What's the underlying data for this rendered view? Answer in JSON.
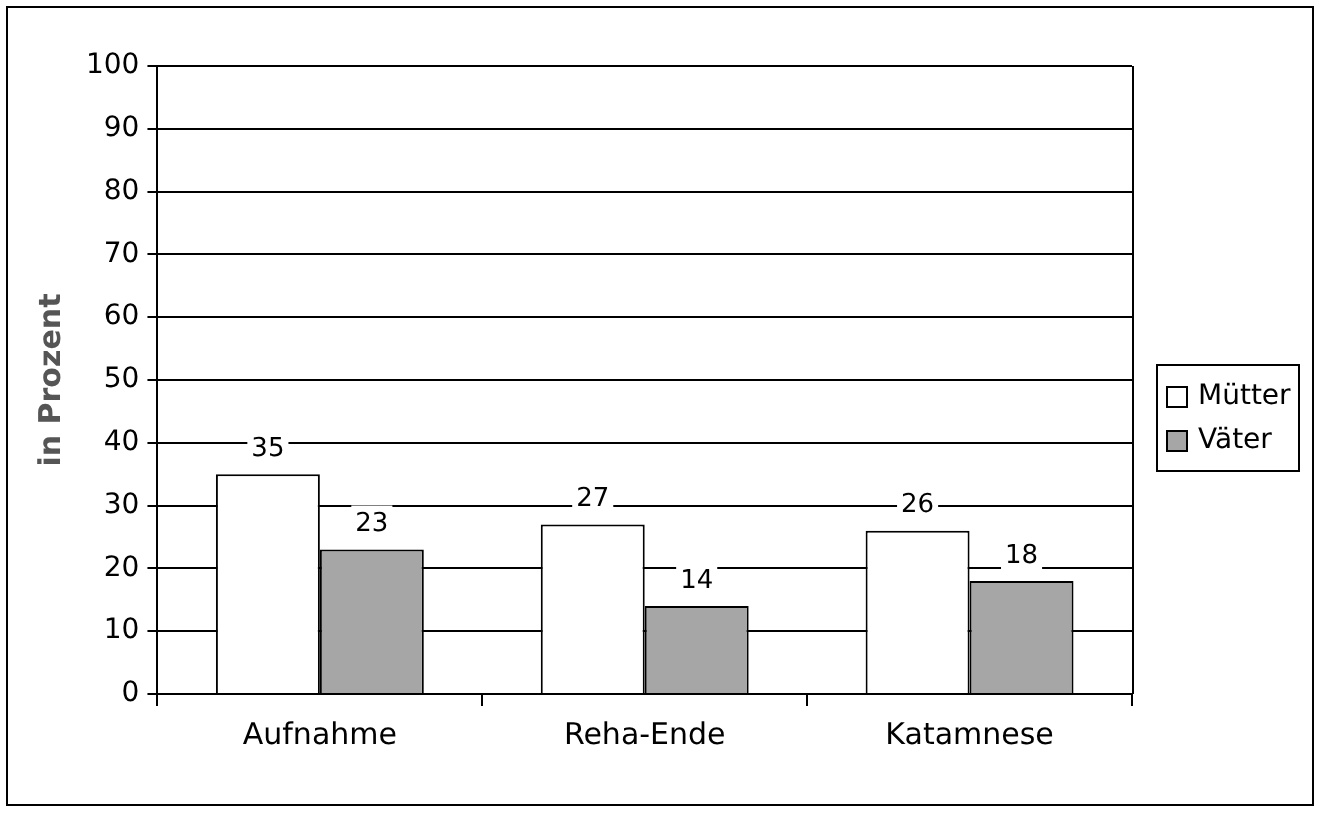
{
  "chart_data": {
    "type": "bar",
    "ylabel": "in Prozent",
    "categories": [
      "Aufnahme",
      "Reha-Ende",
      "Katamnese"
    ],
    "series": [
      {
        "name": "Mütter",
        "color": "#ffffff",
        "values": [
          35,
          27,
          26
        ]
      },
      {
        "name": "Väter",
        "color": "#a6a6a6",
        "values": [
          23,
          14,
          18
        ]
      }
    ],
    "ylim": [
      0,
      100
    ],
    "yticks": [
      0,
      10,
      20,
      30,
      40,
      50,
      60,
      70,
      80,
      90,
      100
    ],
    "grid": "y",
    "legend": "right",
    "data_labels": true
  }
}
